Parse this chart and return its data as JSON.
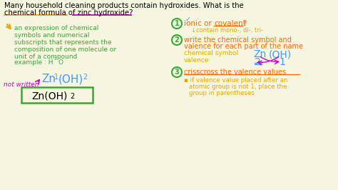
{
  "bg_color": "#f5f5e0",
  "title_line1": "Many household cleaning products contain hydroxides. What is the",
  "title_line2": "chemical formula of zinc hydroxide?",
  "left_col": {
    "arrow_color": "#e6a800",
    "definition_lines": [
      "an expression of chemical",
      "symbols and numerical",
      "subscripts that represents the",
      "composition of one molecule or",
      "unit of a compound"
    ],
    "def_color": "#33aa33",
    "example_color": "#33aa33",
    "zn_formula_color": "#4499ff",
    "not_written_color": "#cc00cc",
    "box_color": "#33aa33",
    "box_text_color": "#000000"
  },
  "right_col": {
    "circle_color": "#33aa33",
    "ionic_text_color": "#ff6600",
    "step1_sub_color": "#e6a800",
    "check_color": "#4499ff",
    "step2_text_color": "#ff6600",
    "label_color": "#e6a800",
    "zn_oh_color": "#4499ff",
    "val_color": "#4499ff",
    "arrow_color": "#cc00cc",
    "step3_title_color": "#ff6600",
    "step3_bullet_color": "#e6a800"
  }
}
